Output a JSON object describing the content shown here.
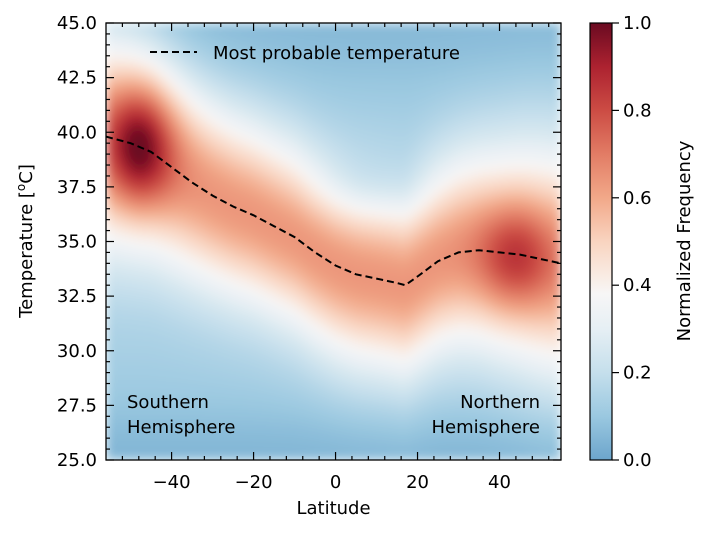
{
  "chart_data": {
    "type": "heatmap",
    "xlabel": "Latitude",
    "ylabel": "Temperature [°C]",
    "ylabel_parts": {
      "main": "Temperature [",
      "sup": "o",
      "unit": "C]"
    },
    "xlim": [
      -56,
      55
    ],
    "ylim": [
      25.0,
      45.0
    ],
    "x_ticks": [
      -40,
      -20,
      0,
      20,
      40
    ],
    "x_tick_labels": [
      "−40",
      "−20",
      "0",
      "20",
      "40"
    ],
    "y_ticks": [
      25.0,
      27.5,
      30.0,
      32.5,
      35.0,
      37.5,
      40.0,
      42.5,
      45.0
    ],
    "y_tick_labels": [
      "25.0",
      "27.5",
      "30.0",
      "32.5",
      "35.0",
      "37.5",
      "40.0",
      "42.5",
      "45.0"
    ],
    "colorbar": {
      "label": "Normalized Frequency",
      "range": [
        0.0,
        1.0
      ],
      "ticks": [
        0.0,
        0.2,
        0.4,
        0.6,
        0.8,
        1.0
      ],
      "tick_labels": [
        "0.0",
        "0.2",
        "0.4",
        "0.6",
        "0.8",
        "1.0"
      ],
      "colormap": "RdBu_r"
    },
    "series": [
      {
        "name": "Most probable temperature",
        "style": "dashed",
        "color": "#000000",
        "x": [
          -56,
          -50,
          -45,
          -40,
          -35,
          -30,
          -25,
          -20,
          -15,
          -10,
          -5,
          0,
          5,
          10,
          15,
          17,
          20,
          25,
          30,
          35,
          40,
          45,
          50,
          55
        ],
        "y": [
          39.8,
          39.5,
          39.1,
          38.4,
          37.7,
          37.1,
          36.6,
          36.2,
          35.7,
          35.2,
          34.5,
          33.9,
          33.5,
          33.3,
          33.1,
          33.0,
          33.4,
          34.1,
          34.5,
          34.6,
          34.5,
          34.4,
          34.2,
          34.0
        ]
      }
    ],
    "annotations": [
      {
        "id": "southern",
        "lines": [
          "Southern",
          "Hemisphere"
        ],
        "position": "bottom-left"
      },
      {
        "id": "northern",
        "lines": [
          "Northern",
          "Hemisphere"
        ],
        "position": "bottom-right"
      }
    ],
    "legend": {
      "entries": [
        "Most probable temperature"
      ],
      "placement": "top-center"
    }
  }
}
